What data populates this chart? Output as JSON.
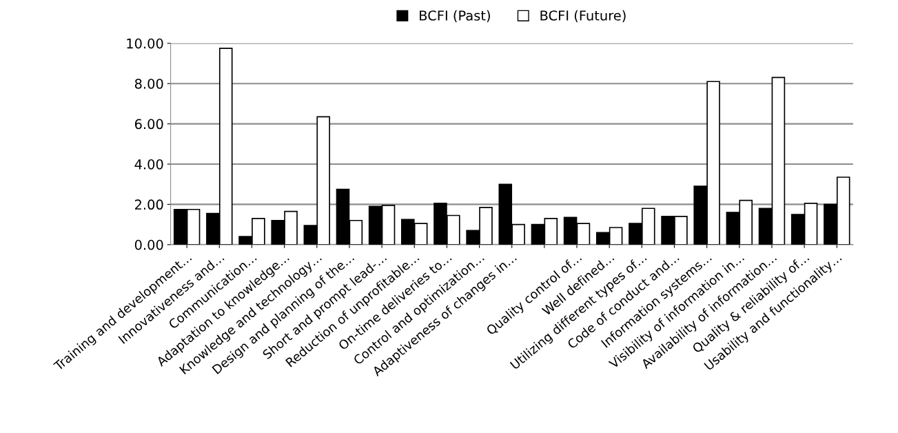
{
  "chart_data": {
    "type": "bar",
    "categories": [
      "Training and development…",
      "Innovativeness and…",
      "Communication…",
      "Adaptation to knowledge…",
      "Knowledge and technology…",
      "Design and planning of the…",
      "Short and prompt lead-…",
      "Reduction of unprofitable…",
      "On-time deliveries to…",
      "Control and optimization…",
      "Adaptiveness of changes in…",
      null,
      "Quality control of…",
      "Well defined…",
      "Utilizing different types of…",
      "Code of conduct and…",
      "Information systems…",
      "Visibility of information in…",
      "Availability of information…",
      "Quality & reliability of…",
      "Usability and functionality…"
    ],
    "series": [
      {
        "name": "BCFI (Past)",
        "color": "#000000",
        "values": [
          1.75,
          1.55,
          0.4,
          1.2,
          0.95,
          2.75,
          1.9,
          1.25,
          2.05,
          0.7,
          3.0,
          1.0,
          1.35,
          0.6,
          1.05,
          1.4,
          2.9,
          1.6,
          1.8,
          1.5,
          2.0
        ]
      },
      {
        "name": "BCFI (Future)",
        "color": "#ffffff",
        "values": [
          1.75,
          9.75,
          1.3,
          1.65,
          6.35,
          1.2,
          1.95,
          1.05,
          1.45,
          1.85,
          1.0,
          1.3,
          1.05,
          0.85,
          1.8,
          1.4,
          8.1,
          2.2,
          8.3,
          2.05,
          3.35
        ]
      }
    ],
    "ylim": [
      0,
      10
    ],
    "yticks": [
      {
        "value": 0,
        "label": "0.00"
      },
      {
        "value": 2,
        "label": "2.00"
      },
      {
        "value": 4,
        "label": "4.00"
      },
      {
        "value": 6,
        "label": "6.00"
      },
      {
        "value": 8,
        "label": "8.00"
      },
      {
        "value": 10,
        "label": "10.00"
      }
    ],
    "grid": "y",
    "legend": "top"
  }
}
